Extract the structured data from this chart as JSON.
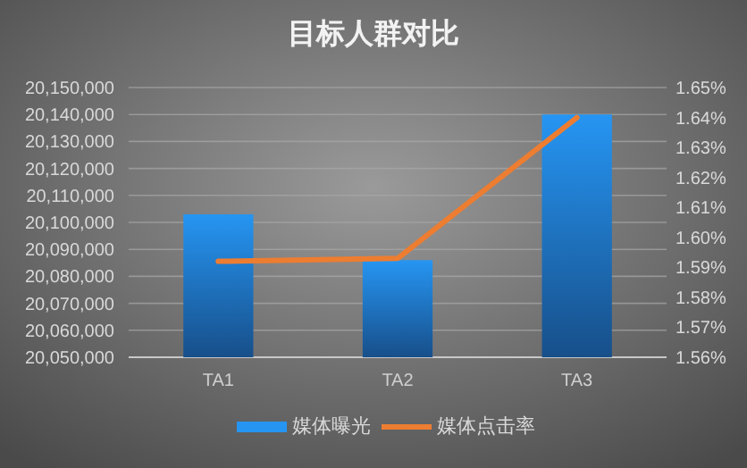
{
  "chart_data": {
    "type": "bar",
    "title": "目标人群对比",
    "categories": [
      "TA1",
      "TA2",
      "TA3"
    ],
    "series": [
      {
        "name": "媒体曝光",
        "color": "#2695f2",
        "values": [
          20103000,
          20086000,
          20140000
        ]
      },
      {
        "name": "媒体点击率",
        "type": "line",
        "axis": "y2",
        "color": "#ed7d31",
        "values": [
          1.592,
          1.593,
          1.64
        ]
      }
    ],
    "ylim": [
      20050000,
      20150000
    ],
    "yticks": [
      {
        "value": 20050000,
        "label": "20,050,000"
      },
      {
        "value": 20060000,
        "label": "20,060,000"
      },
      {
        "value": 20070000,
        "label": "20,070,000"
      },
      {
        "value": 20080000,
        "label": "20,080,000"
      },
      {
        "value": 20090000,
        "label": "20,090,000"
      },
      {
        "value": 20100000,
        "label": "20,100,000"
      },
      {
        "value": 20110000,
        "label": "20,110,000"
      },
      {
        "value": 20120000,
        "label": "20,120,000"
      },
      {
        "value": 20130000,
        "label": "20,130,000"
      },
      {
        "value": 20140000,
        "label": "20,140,000"
      },
      {
        "value": 20150000,
        "label": "20,150,000"
      }
    ],
    "y2lim": [
      1.56,
      1.65
    ],
    "y2ticks": [
      {
        "value": 1.56,
        "label": "1.56%"
      },
      {
        "value": 1.57,
        "label": "1.57%"
      },
      {
        "value": 1.58,
        "label": "1.58%"
      },
      {
        "value": 1.59,
        "label": "1.59%"
      },
      {
        "value": 1.6,
        "label": "1.60%"
      },
      {
        "value": 1.61,
        "label": "1.61%"
      },
      {
        "value": 1.62,
        "label": "1.62%"
      },
      {
        "value": 1.63,
        "label": "1.63%"
      },
      {
        "value": 1.64,
        "label": "1.64%"
      },
      {
        "value": 1.65,
        "label": "1.65%"
      }
    ],
    "grid": "y",
    "legend": "bottom",
    "marker": "none",
    "line_style": "solid"
  }
}
